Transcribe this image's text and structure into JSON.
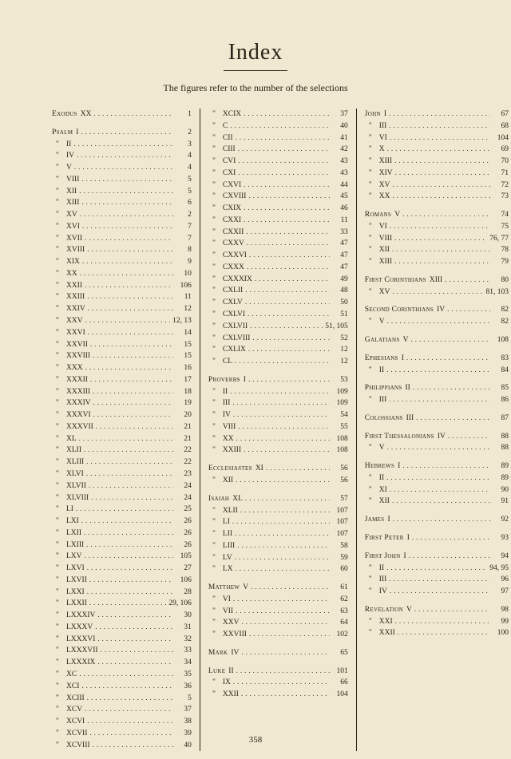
{
  "title": "Index",
  "subtitle": "The figures refer to the number of the selections",
  "pagenum": "358",
  "col1": [
    {
      "book": "Exodus",
      "chap": "XX",
      "num": "1",
      "gapAfter": true
    },
    {
      "book": "Psalm",
      "chap": "I",
      "num": "2"
    },
    {
      "ditto": true,
      "chap": "II",
      "num": "3"
    },
    {
      "ditto": true,
      "chap": "IV",
      "num": "4"
    },
    {
      "ditto": true,
      "chap": "V",
      "num": "4"
    },
    {
      "ditto": true,
      "chap": "VIII",
      "num": "5"
    },
    {
      "ditto": true,
      "chap": "XII",
      "num": "5"
    },
    {
      "ditto": true,
      "chap": "XIII",
      "num": "6"
    },
    {
      "ditto": true,
      "chap": "XV",
      "num": "2"
    },
    {
      "ditto": true,
      "chap": "XVI",
      "num": "7"
    },
    {
      "ditto": true,
      "chap": "XVII",
      "num": "7"
    },
    {
      "ditto": true,
      "chap": "XVIII",
      "num": "8"
    },
    {
      "ditto": true,
      "chap": "XIX",
      "num": "9"
    },
    {
      "ditto": true,
      "chap": "XX",
      "num": "10"
    },
    {
      "ditto": true,
      "chap": "XXII",
      "num": "106"
    },
    {
      "ditto": true,
      "chap": "XXIII",
      "num": "11"
    },
    {
      "ditto": true,
      "chap": "XXIV",
      "num": "12"
    },
    {
      "ditto": true,
      "chap": "XXV",
      "num": "12, 13"
    },
    {
      "ditto": true,
      "chap": "XXVI",
      "num": "14"
    },
    {
      "ditto": true,
      "chap": "XXVII",
      "num": "15"
    },
    {
      "ditto": true,
      "chap": "XXVIII",
      "num": "15"
    },
    {
      "ditto": true,
      "chap": "XXX",
      "num": "16"
    },
    {
      "ditto": true,
      "chap": "XXXII",
      "num": "17"
    },
    {
      "ditto": true,
      "chap": "XXXIII",
      "num": "18"
    },
    {
      "ditto": true,
      "chap": "XXXIV",
      "num": "19"
    },
    {
      "ditto": true,
      "chap": "XXXVI",
      "num": "20"
    },
    {
      "ditto": true,
      "chap": "XXXVII",
      "num": "21"
    },
    {
      "ditto": true,
      "chap": "XL",
      "num": "21"
    },
    {
      "ditto": true,
      "chap": "XLII",
      "num": "22"
    },
    {
      "ditto": true,
      "chap": "XLIII",
      "num": "22"
    },
    {
      "ditto": true,
      "chap": "XLVI",
      "num": "23"
    },
    {
      "ditto": true,
      "chap": "XLVII",
      "num": "24"
    },
    {
      "ditto": true,
      "chap": "XLVIII",
      "num": "24"
    },
    {
      "ditto": true,
      "chap": "LI",
      "num": "25"
    },
    {
      "ditto": true,
      "chap": "LXI",
      "num": "26"
    },
    {
      "ditto": true,
      "chap": "LXII",
      "num": "26"
    },
    {
      "ditto": true,
      "chap": "LXIII",
      "num": "26"
    },
    {
      "ditto": true,
      "chap": "LXV",
      "num": "105"
    },
    {
      "ditto": true,
      "chap": "LXVI",
      "num": "27"
    },
    {
      "ditto": true,
      "chap": "LXVII",
      "num": "106"
    },
    {
      "ditto": true,
      "chap": "LXXI",
      "num": "28"
    },
    {
      "ditto": true,
      "chap": "LXXII",
      "num": "29, 106"
    },
    {
      "ditto": true,
      "chap": "LXXXIV",
      "num": "30"
    },
    {
      "ditto": true,
      "chap": "LXXXV",
      "num": "31"
    },
    {
      "ditto": true,
      "chap": "LXXXVI",
      "num": "32"
    },
    {
      "ditto": true,
      "chap": "LXXXVII",
      "num": "33"
    },
    {
      "ditto": true,
      "chap": "LXXXIX",
      "num": "34"
    },
    {
      "ditto": true,
      "chap": "XC",
      "num": "35"
    },
    {
      "ditto": true,
      "chap": "XCI",
      "num": "36"
    },
    {
      "ditto": true,
      "chap": "XCIII",
      "num": "5"
    },
    {
      "ditto": true,
      "chap": "XCV",
      "num": "37"
    },
    {
      "ditto": true,
      "chap": "XCVI",
      "num": "38"
    },
    {
      "ditto": true,
      "chap": "XCVII",
      "num": "39"
    },
    {
      "ditto": true,
      "chap": "XCVIII",
      "num": "40"
    }
  ],
  "col2": [
    {
      "ditto": true,
      "chap": "XCIX",
      "num": "37"
    },
    {
      "ditto": true,
      "chap": "C",
      "num": "40"
    },
    {
      "ditto": true,
      "chap": "CII",
      "num": "41"
    },
    {
      "ditto": true,
      "chap": "CIII",
      "num": "42"
    },
    {
      "ditto": true,
      "chap": "CVI",
      "num": "43"
    },
    {
      "ditto": true,
      "chap": "CXI",
      "num": "43"
    },
    {
      "ditto": true,
      "chap": "CXVI",
      "num": "44"
    },
    {
      "ditto": true,
      "chap": "CXVIII",
      "num": "45"
    },
    {
      "ditto": true,
      "chap": "CXIX",
      "num": "46"
    },
    {
      "ditto": true,
      "chap": "CXXI",
      "num": "11"
    },
    {
      "ditto": true,
      "chap": "CXXII",
      "num": "33"
    },
    {
      "ditto": true,
      "chap": "CXXV",
      "num": "47"
    },
    {
      "ditto": true,
      "chap": "CXXVI",
      "num": "47"
    },
    {
      "ditto": true,
      "chap": "CXXX",
      "num": "47"
    },
    {
      "ditto": true,
      "chap": "CXXXIX",
      "num": "49"
    },
    {
      "ditto": true,
      "chap": "CXLII",
      "num": "48"
    },
    {
      "ditto": true,
      "chap": "CXLV",
      "num": "50"
    },
    {
      "ditto": true,
      "chap": "CXLVI",
      "num": "51"
    },
    {
      "ditto": true,
      "chap": "CXLVII",
      "num": "51, 105"
    },
    {
      "ditto": true,
      "chap": "CXLVIII",
      "num": "52"
    },
    {
      "ditto": true,
      "chap": "CXLIX",
      "num": "12"
    },
    {
      "ditto": true,
      "chap": "CL",
      "num": "12",
      "gapAfter": true
    },
    {
      "book": "Proverbs",
      "chap": "I",
      "num": "53"
    },
    {
      "ditto": true,
      "chap": "II",
      "num": "109"
    },
    {
      "ditto": true,
      "chap": "III",
      "num": "109"
    },
    {
      "ditto": true,
      "chap": "IV",
      "num": "54"
    },
    {
      "ditto": true,
      "chap": "VIII",
      "num": "55"
    },
    {
      "ditto": true,
      "chap": "XX",
      "num": "108"
    },
    {
      "ditto": true,
      "chap": "XXIII",
      "num": "108",
      "gapAfter": true
    },
    {
      "book": "Ecclesiastes",
      "chap": "XI",
      "num": "56"
    },
    {
      "ditto": true,
      "chap": "XII",
      "num": "56",
      "gapAfter": true
    },
    {
      "book": "Isaiah",
      "chap": "XL",
      "num": "57"
    },
    {
      "ditto": true,
      "chap": "XLII",
      "num": "107"
    },
    {
      "ditto": true,
      "chap": "LI",
      "num": "107"
    },
    {
      "ditto": true,
      "chap": "LII",
      "num": "107"
    },
    {
      "ditto": true,
      "chap": "LIII",
      "num": "58"
    },
    {
      "ditto": true,
      "chap": "LV",
      "num": "59"
    },
    {
      "ditto": true,
      "chap": "LX",
      "num": "60",
      "gapAfter": true
    },
    {
      "book": "Matthew",
      "chap": "V",
      "num": "61"
    },
    {
      "ditto": true,
      "chap": "VI",
      "num": "62"
    },
    {
      "ditto": true,
      "chap": "VII",
      "num": "63"
    },
    {
      "ditto": true,
      "chap": "XXV",
      "num": "64"
    },
    {
      "ditto": true,
      "chap": "XXVIII",
      "num": "102",
      "gapAfter": true
    },
    {
      "book": "Mark",
      "chap": "IV",
      "num": "65",
      "gapAfter": true
    },
    {
      "book": "Luke",
      "chap": "II",
      "num": "101"
    },
    {
      "ditto": true,
      "chap": "IX",
      "num": "66"
    },
    {
      "ditto": true,
      "chap": "XXII",
      "num": "104"
    }
  ],
  "col3": [
    {
      "book": "John",
      "chap": "I",
      "num": "67"
    },
    {
      "ditto": true,
      "chap": "III",
      "num": "68"
    },
    {
      "ditto": true,
      "chap": "VI",
      "num": "104"
    },
    {
      "ditto": true,
      "chap": "X",
      "num": "69"
    },
    {
      "ditto": true,
      "chap": "XIII",
      "num": "70"
    },
    {
      "ditto": true,
      "chap": "XIV",
      "num": "71"
    },
    {
      "ditto": true,
      "chap": "XV",
      "num": "72"
    },
    {
      "ditto": true,
      "chap": "XX",
      "num": "73",
      "gapAfter": true
    },
    {
      "book": "Romans",
      "chap": "V",
      "num": "74"
    },
    {
      "ditto": true,
      "chap": "VI",
      "num": "75"
    },
    {
      "ditto": true,
      "chap": "VIII",
      "num": "76, 77"
    },
    {
      "ditto": true,
      "chap": "XII",
      "num": "78"
    },
    {
      "ditto": true,
      "chap": "XIII",
      "num": "79",
      "gapAfter": true
    },
    {
      "book": "First Corinthians",
      "chap": "XIII",
      "num": "80"
    },
    {
      "ditto": true,
      "chap": "XV",
      "num": "81, 103",
      "gapAfter": true
    },
    {
      "book": "Second Corinthians",
      "chap": "IV",
      "num": "82"
    },
    {
      "ditto": true,
      "chap": "V",
      "num": "82",
      "gapAfter": true
    },
    {
      "book": "Galatians",
      "chap": "V",
      "num": "108",
      "gapAfter": true
    },
    {
      "book": "Ephesians",
      "chap": "I",
      "num": "83"
    },
    {
      "ditto": true,
      "chap": "II",
      "num": "84",
      "gapAfter": true
    },
    {
      "book": "Philippians",
      "chap": "II",
      "num": "85"
    },
    {
      "ditto": true,
      "chap": "III",
      "num": "86",
      "gapAfter": true
    },
    {
      "book": "Colossians",
      "chap": "III",
      "num": "87",
      "gapAfter": true
    },
    {
      "book": "First Thessalonians",
      "chap": "IV",
      "num": "88"
    },
    {
      "ditto": true,
      "chap": "V",
      "num": "88",
      "gapAfter": true
    },
    {
      "book": "Hebrews",
      "chap": "I",
      "num": "89"
    },
    {
      "ditto": true,
      "chap": "II",
      "num": "89"
    },
    {
      "ditto": true,
      "chap": "XI",
      "num": "90"
    },
    {
      "ditto": true,
      "chap": "XII",
      "num": "91",
      "gapAfter": true
    },
    {
      "book": "James",
      "chap": "I",
      "num": "92",
      "gapAfter": true
    },
    {
      "book": "First Peter",
      "chap": "I",
      "num": "93",
      "gapAfter": true
    },
    {
      "book": "First John",
      "chap": "I",
      "num": "94"
    },
    {
      "ditto": true,
      "chap": "II",
      "num": "94, 95"
    },
    {
      "ditto": true,
      "chap": "III",
      "num": "96"
    },
    {
      "ditto": true,
      "chap": "IV",
      "num": "97",
      "gapAfter": true
    },
    {
      "book": "Revelation",
      "chap": "V",
      "num": "98"
    },
    {
      "ditto": true,
      "chap": "XXI",
      "num": "99"
    },
    {
      "ditto": true,
      "chap": "XXII",
      "num": "100"
    }
  ]
}
